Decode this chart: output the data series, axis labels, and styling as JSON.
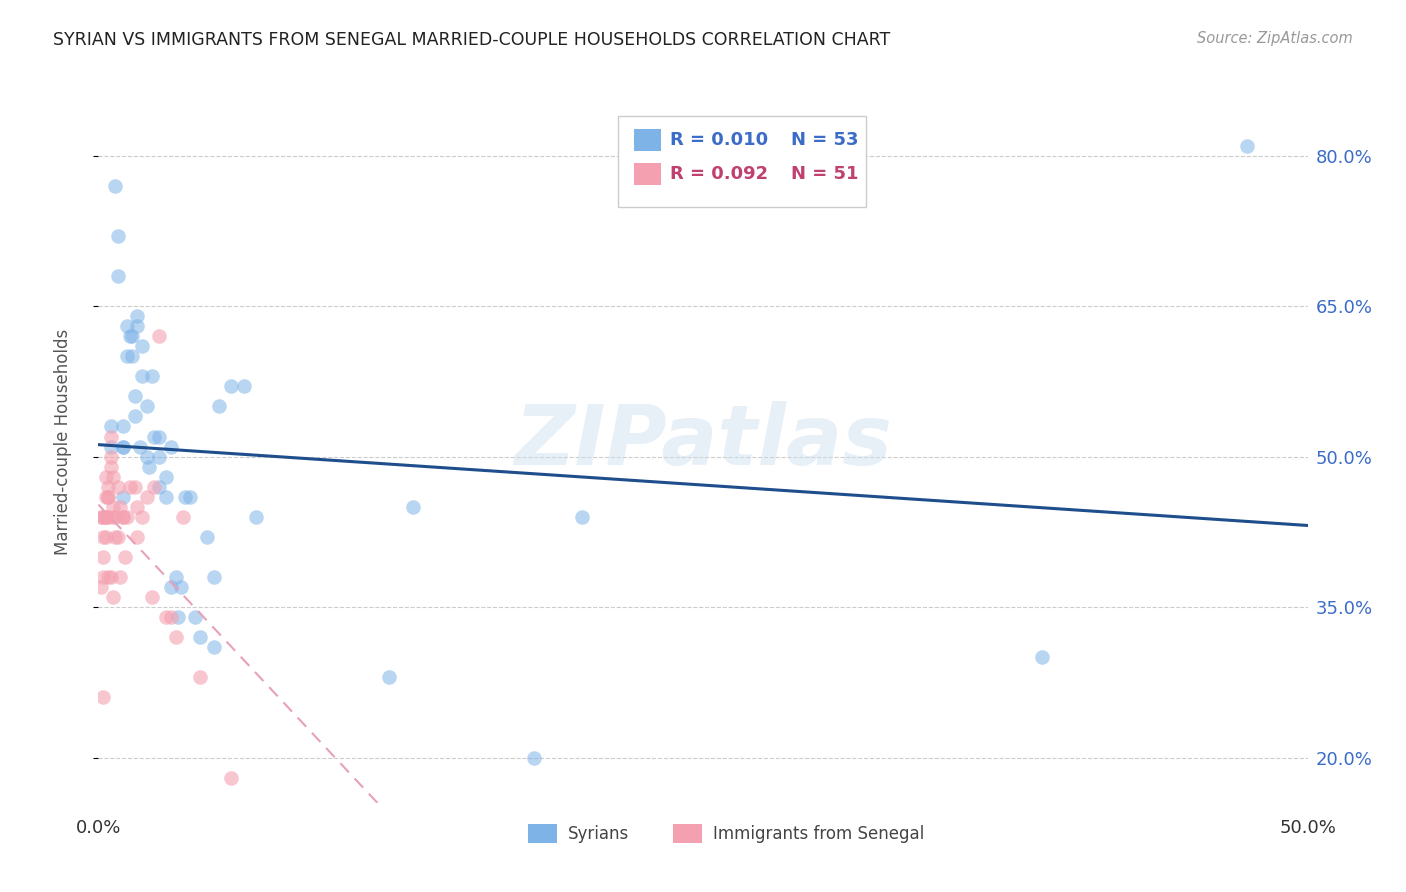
{
  "title": "SYRIAN VS IMMIGRANTS FROM SENEGAL MARRIED-COUPLE HOUSEHOLDS CORRELATION CHART",
  "source": "Source: ZipAtlas.com",
  "ylabel": "Married-couple Households",
  "ytick_vals": [
    0.2,
    0.35,
    0.5,
    0.65,
    0.8
  ],
  "ytick_labels": [
    "20.0%",
    "35.0%",
    "50.0%",
    "65.0%",
    "80.0%"
  ],
  "xlim": [
    0.0,
    0.5
  ],
  "ylim": [
    0.155,
    0.875
  ],
  "color_blue": "#7EB3E8",
  "color_pink": "#F4A0B0",
  "color_line_blue": "#1F4E8C",
  "color_line_pink": "#E05080",
  "color_dashed_pink": "#E8A0B8",
  "watermark": "ZIPatlas",
  "legend_r1": "R = 0.010",
  "legend_n1": "N = 53",
  "legend_r2": "R = 0.092",
  "legend_n2": "N = 51",
  "syrians_x": [
    0.005,
    0.005,
    0.007,
    0.008,
    0.008,
    0.01,
    0.01,
    0.01,
    0.01,
    0.012,
    0.012,
    0.013,
    0.014,
    0.014,
    0.015,
    0.015,
    0.016,
    0.016,
    0.017,
    0.018,
    0.018,
    0.02,
    0.02,
    0.021,
    0.022,
    0.023,
    0.025,
    0.025,
    0.025,
    0.028,
    0.028,
    0.03,
    0.03,
    0.032,
    0.033,
    0.034,
    0.036,
    0.038,
    0.04,
    0.042,
    0.045,
    0.048,
    0.048,
    0.05,
    0.055,
    0.06,
    0.065,
    0.12,
    0.13,
    0.18,
    0.2,
    0.39,
    0.475
  ],
  "syrians_y": [
    0.51,
    0.53,
    0.77,
    0.72,
    0.68,
    0.51,
    0.51,
    0.53,
    0.46,
    0.63,
    0.6,
    0.62,
    0.62,
    0.6,
    0.56,
    0.54,
    0.63,
    0.64,
    0.51,
    0.61,
    0.58,
    0.55,
    0.5,
    0.49,
    0.58,
    0.52,
    0.52,
    0.5,
    0.47,
    0.48,
    0.46,
    0.51,
    0.37,
    0.38,
    0.34,
    0.37,
    0.46,
    0.46,
    0.34,
    0.32,
    0.42,
    0.38,
    0.31,
    0.55,
    0.57,
    0.57,
    0.44,
    0.28,
    0.45,
    0.2,
    0.44,
    0.3,
    0.81
  ],
  "senegal_x": [
    0.001,
    0.001,
    0.002,
    0.002,
    0.002,
    0.002,
    0.002,
    0.002,
    0.003,
    0.003,
    0.003,
    0.003,
    0.003,
    0.004,
    0.004,
    0.004,
    0.004,
    0.004,
    0.005,
    0.005,
    0.005,
    0.005,
    0.006,
    0.006,
    0.006,
    0.006,
    0.007,
    0.007,
    0.008,
    0.008,
    0.009,
    0.009,
    0.01,
    0.01,
    0.011,
    0.012,
    0.013,
    0.015,
    0.016,
    0.016,
    0.018,
    0.02,
    0.022,
    0.023,
    0.025,
    0.028,
    0.03,
    0.032,
    0.035,
    0.042,
    0.055
  ],
  "senegal_y": [
    0.44,
    0.37,
    0.44,
    0.44,
    0.42,
    0.4,
    0.38,
    0.26,
    0.48,
    0.46,
    0.44,
    0.44,
    0.42,
    0.47,
    0.46,
    0.46,
    0.44,
    0.38,
    0.52,
    0.5,
    0.49,
    0.38,
    0.48,
    0.45,
    0.44,
    0.36,
    0.44,
    0.42,
    0.47,
    0.42,
    0.45,
    0.38,
    0.44,
    0.44,
    0.4,
    0.44,
    0.47,
    0.47,
    0.45,
    0.42,
    0.44,
    0.46,
    0.36,
    0.47,
    0.62,
    0.34,
    0.34,
    0.32,
    0.44,
    0.28,
    0.18
  ]
}
